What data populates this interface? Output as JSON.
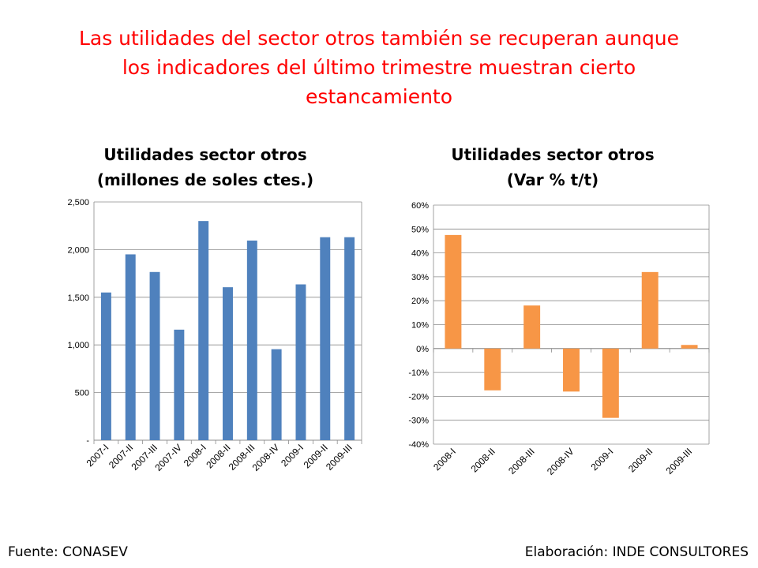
{
  "slide": {
    "title_lines": [
      "Las utilidades del sector otros también se recuperan aunque",
      "los indicadores del último trimestre muestran cierto",
      "estancamiento"
    ],
    "footer_source": "Fuente: CONASEV",
    "footer_credit": "Elaboración: INDE CONSULTORES"
  },
  "chart_data": [
    {
      "type": "bar",
      "title_lines": [
        "Utilidades sector otros",
        "(millones de soles ctes.)"
      ],
      "categories": [
        "2007-I",
        "2007-II",
        "2007-III",
        "2007-IV",
        "2008-I",
        "2008-II",
        "2008-III",
        "2008-IV",
        "2009-I",
        "2009-II",
        "2009-III"
      ],
      "values": [
        1550,
        1950,
        1765,
        1160,
        2300,
        1605,
        2095,
        955,
        1635,
        2130,
        2130
      ],
      "ylim": [
        0,
        2500
      ],
      "yticks": [
        0,
        500,
        1000,
        1500,
        2000,
        2500
      ],
      "ytick_labels": [
        "-",
        "500",
        "1,000",
        "1,500",
        "2,000",
        "2,500"
      ],
      "color": "#4f81bd",
      "grid": true
    },
    {
      "type": "bar",
      "title_lines": [
        "Utilidades sector otros",
        "(Var % t/t)"
      ],
      "categories": [
        "2008-I",
        "2008-II",
        "2008-III",
        "2008-IV",
        "2009-I",
        "2009-II",
        "2009-III"
      ],
      "values": [
        47.5,
        -17.5,
        18.0,
        -18.0,
        -29.0,
        32.0,
        1.5
      ],
      "ylim": [
        -40,
        60
      ],
      "yticks": [
        -40,
        -30,
        -20,
        -10,
        0,
        10,
        20,
        30,
        40,
        50,
        60
      ],
      "ytick_labels": [
        "-40%",
        "-30%",
        "-20%",
        "-10%",
        "0%",
        "10%",
        "20%",
        "30%",
        "40%",
        "50%",
        "60%"
      ],
      "color": "#f79646",
      "grid": true
    }
  ]
}
